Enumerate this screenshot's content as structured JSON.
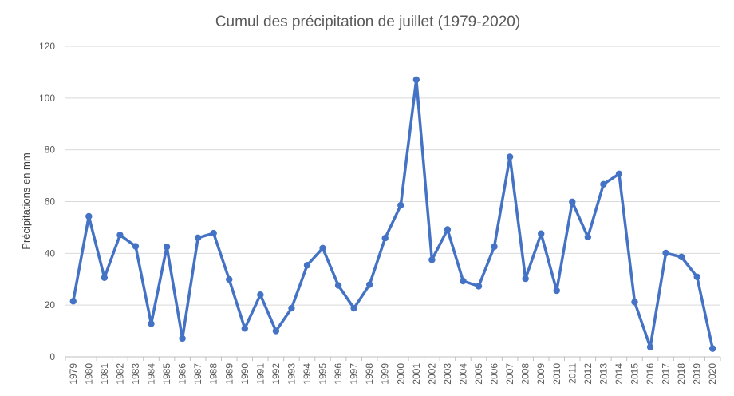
{
  "chart_data": {
    "type": "line",
    "title": "Cumul des précipitation de juillet (1979-2020)",
    "xlabel": "",
    "ylabel": "Précipitations en mm",
    "ylim": [
      0,
      120
    ],
    "yticks": [
      0,
      20,
      40,
      60,
      80,
      100,
      120
    ],
    "grid": true,
    "legend": "none",
    "color": "#4472C4",
    "categories": [
      "1979",
      "1980",
      "1981",
      "1982",
      "1983",
      "1984",
      "1985",
      "1986",
      "1987",
      "1988",
      "1989",
      "1990",
      "1991",
      "1992",
      "1993",
      "1994",
      "1995",
      "1996",
      "1997",
      "1998",
      "1999",
      "2000",
      "2001",
      "2002",
      "2003",
      "2004",
      "2005",
      "2006",
      "2007",
      "2008",
      "2009",
      "2010",
      "2011",
      "2012",
      "2013",
      "2014",
      "2015",
      "2016",
      "2017",
      "2018",
      "2019",
      "2020"
    ],
    "series": [
      {
        "values": [
          21.5,
          54.3,
          30.6,
          47.1,
          42.7,
          12.8,
          42.5,
          7.1,
          46.0,
          47.8,
          29.9,
          11.0,
          24.0,
          10.0,
          18.8,
          35.4,
          42.0,
          27.6,
          18.8,
          27.9,
          45.9,
          58.6,
          107.1,
          37.5,
          49.2,
          29.3,
          27.3,
          42.6,
          77.3,
          30.2,
          47.6,
          25.6,
          59.9,
          46.3,
          66.7,
          70.7,
          21.2,
          3.8,
          40.1,
          38.6,
          30.9,
          3.2
        ]
      }
    ]
  }
}
